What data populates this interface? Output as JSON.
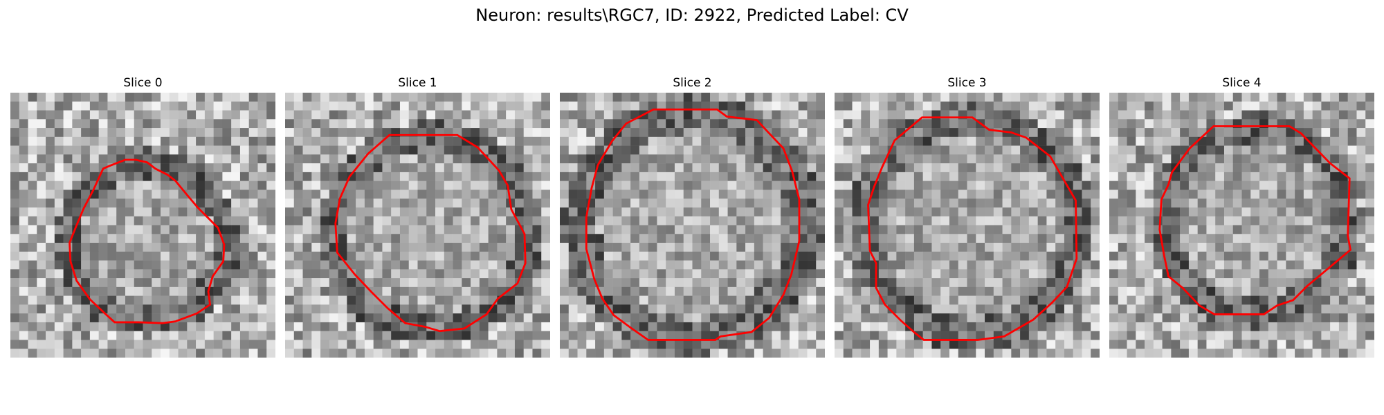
{
  "figure": {
    "title": "Neuron: results\\RGC7, ID: 2922, Predicted Label: CV"
  },
  "colors": {
    "contour": "#ff0000",
    "background": "#ffffff"
  },
  "slices": [
    {
      "label": "Slice 0"
    },
    {
      "label": "Slice 1"
    },
    {
      "label": "Slice 2"
    },
    {
      "label": "Slice 3"
    },
    {
      "label": "Slice 4"
    }
  ]
}
